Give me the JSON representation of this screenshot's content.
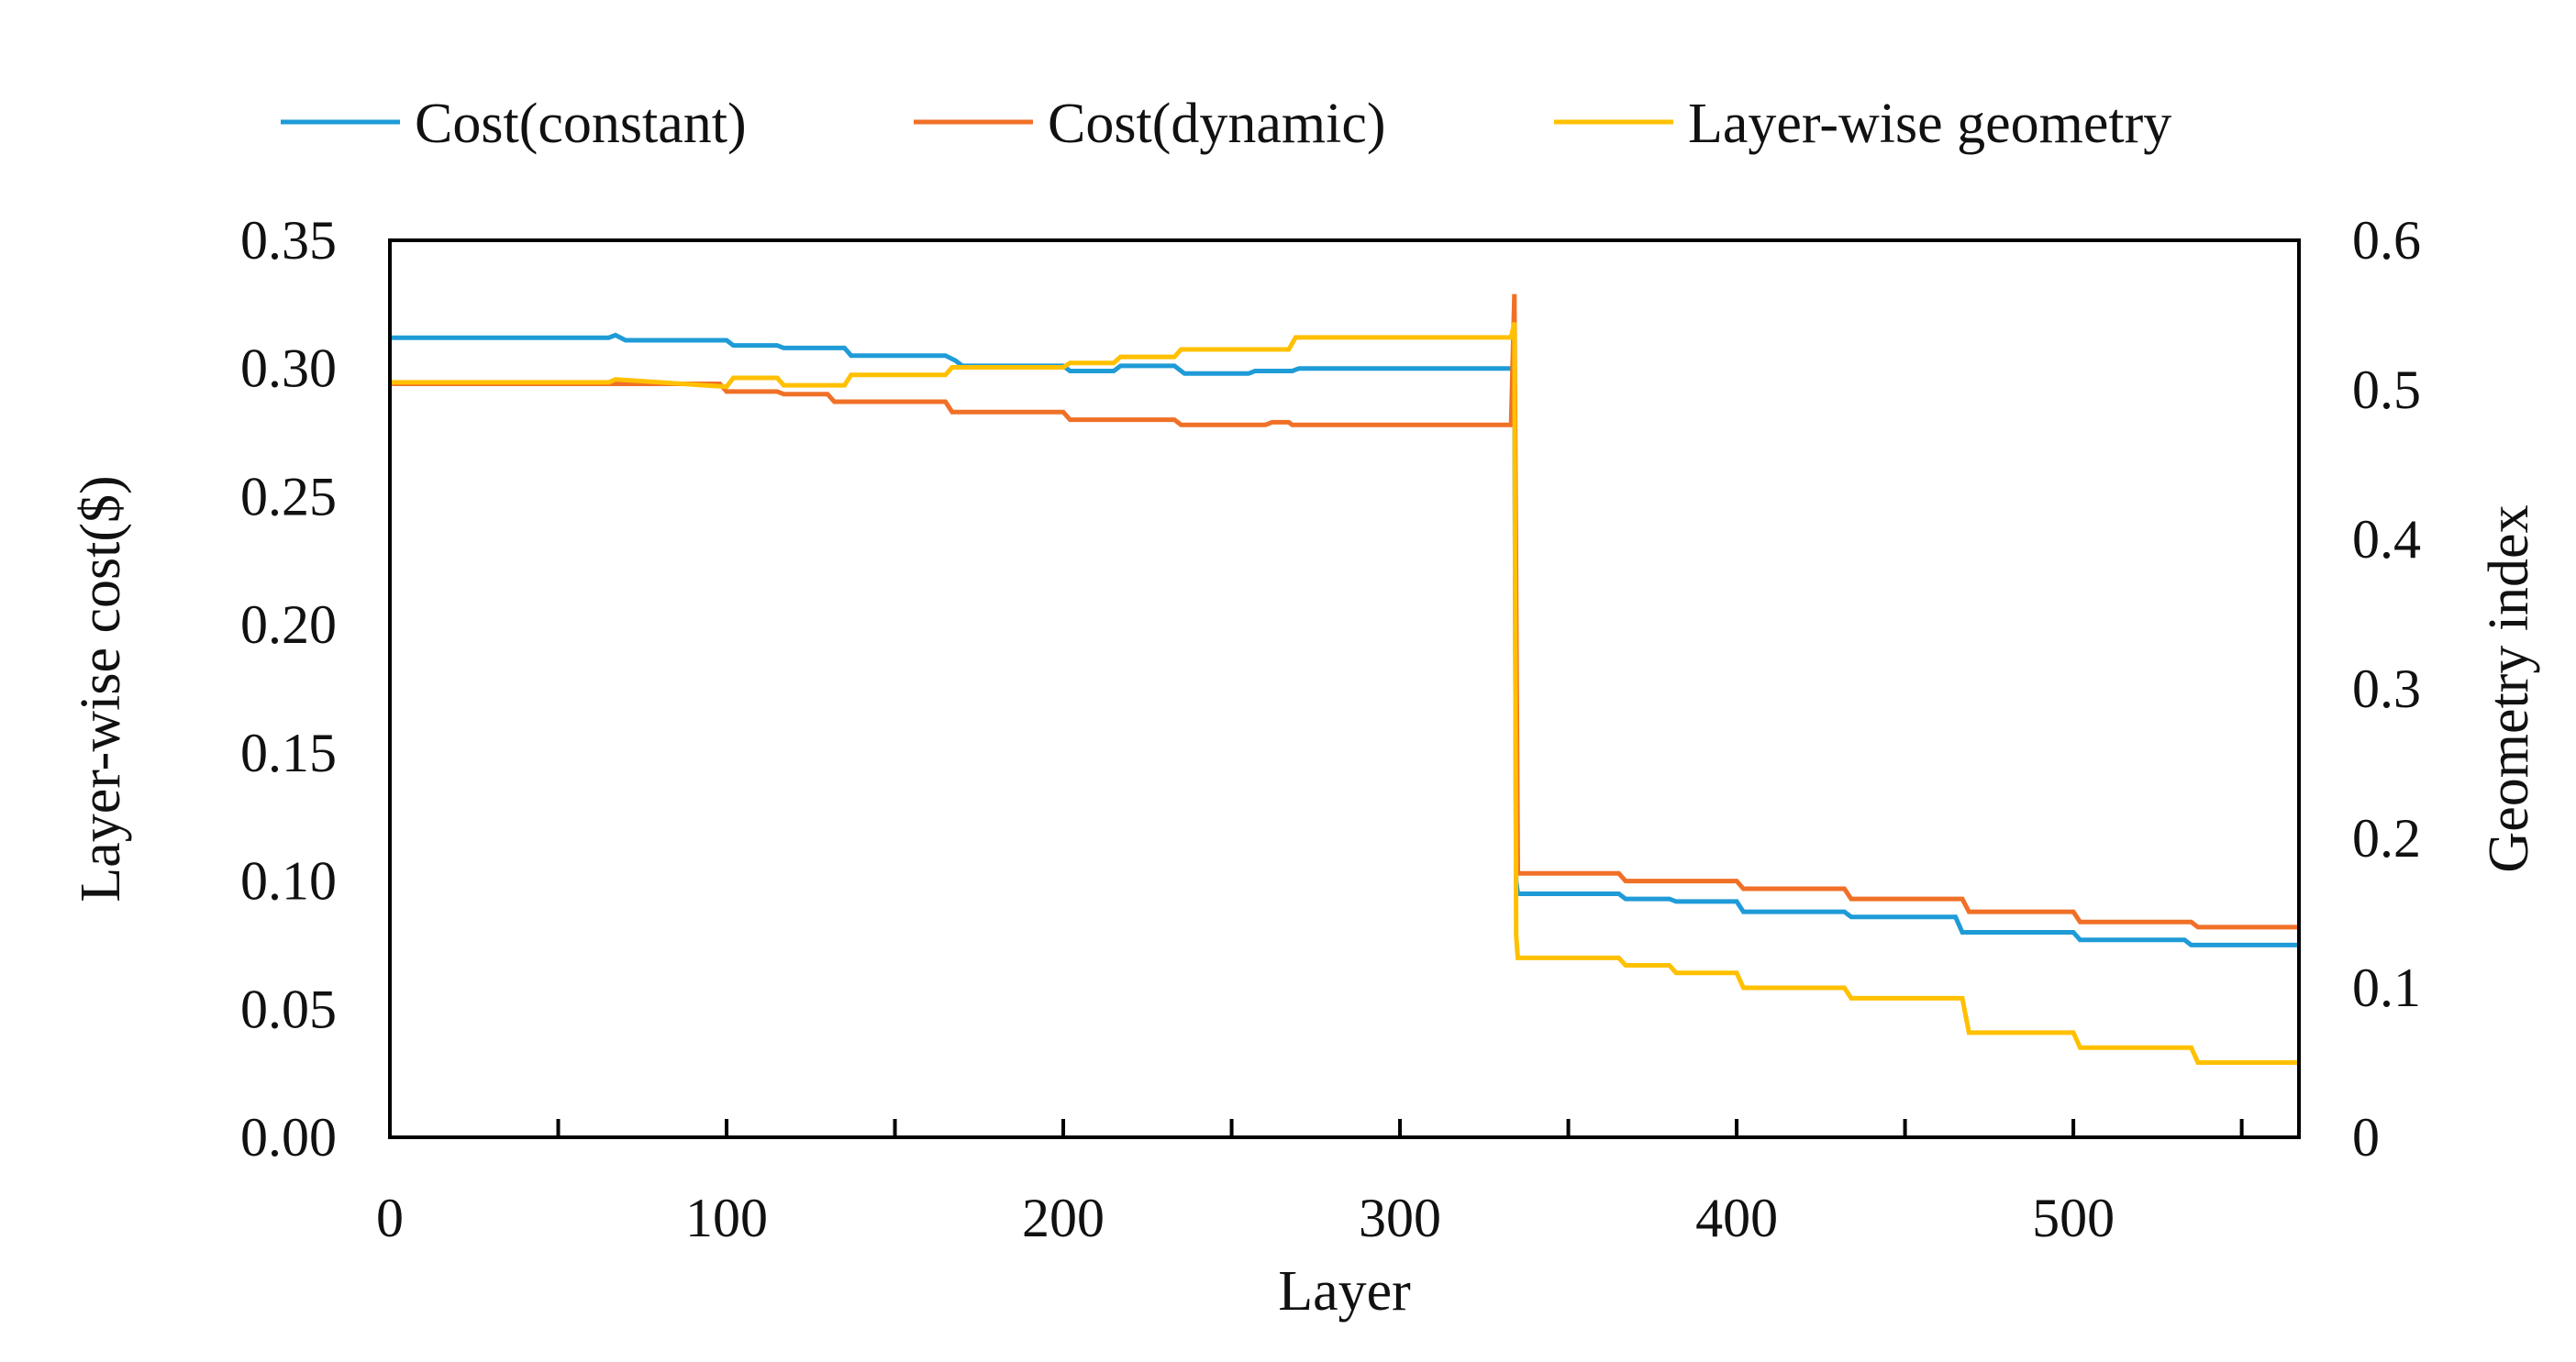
{
  "chart_data": {
    "type": "line",
    "title": "",
    "xlabel": "Layer",
    "ylabel": "Layer-wise cost($)",
    "y2label": "Geometry index",
    "xlim": [
      0,
      567
    ],
    "ylim": [
      0,
      0.35
    ],
    "y2lim": [
      0,
      0.6
    ],
    "xticks": [
      0,
      100,
      200,
      300,
      400,
      500
    ],
    "xtick_labels": [
      "0",
      "100",
      "200",
      "300",
      "400",
      "500"
    ],
    "yticks": [
      0,
      0.05,
      0.1,
      0.15,
      0.2,
      0.25,
      0.3,
      0.35
    ],
    "ytick_labels": [
      "0.00",
      "0.05",
      "0.10",
      "0.15",
      "0.20",
      "0.25",
      "0.30",
      "0.35"
    ],
    "y2ticks": [
      0,
      0.1,
      0.2,
      0.3,
      0.4,
      0.5,
      0.6
    ],
    "y2tick_labels": [
      "0",
      "0.1",
      "0.2",
      "0.3",
      "0.4",
      "0.5",
      "0.6"
    ],
    "grid": false,
    "legend_position": "top",
    "series": [
      {
        "name": "Cost(constant)",
        "color": "#1f9bd7",
        "axis": "left",
        "x": [
          0,
          65,
          67,
          70,
          100,
          102,
          115,
          117,
          135,
          137,
          165,
          168,
          170,
          200,
          202,
          215,
          217,
          233,
          236,
          255,
          257,
          268,
          270,
          333,
          334,
          334.5,
          335,
          336,
          365,
          367,
          380,
          382,
          400,
          402,
          432,
          434,
          465,
          467,
          500,
          502,
          533,
          535,
          567
        ],
        "y": [
          0.312,
          0.312,
          0.313,
          0.311,
          0.311,
          0.309,
          0.309,
          0.308,
          0.308,
          0.305,
          0.305,
          0.303,
          0.301,
          0.301,
          0.299,
          0.299,
          0.301,
          0.301,
          0.298,
          0.298,
          0.299,
          0.299,
          0.3,
          0.3,
          0.3,
          0.1,
          0.095,
          0.095,
          0.095,
          0.093,
          0.093,
          0.092,
          0.092,
          0.088,
          0.088,
          0.086,
          0.086,
          0.08,
          0.08,
          0.077,
          0.077,
          0.075,
          0.075
        ]
      },
      {
        "name": "Cost(dynamic)",
        "color": "#f07027",
        "axis": "left",
        "x": [
          0,
          98,
          100,
          115,
          117,
          130,
          132,
          165,
          167,
          200,
          202,
          233,
          235,
          260,
          262,
          267,
          268,
          333,
          334,
          335,
          336,
          365,
          367,
          400,
          402,
          432,
          434,
          467,
          469,
          500,
          502,
          535,
          537,
          567
        ],
        "y": [
          0.294,
          0.294,
          0.291,
          0.291,
          0.29,
          0.29,
          0.287,
          0.287,
          0.283,
          0.283,
          0.28,
          0.28,
          0.278,
          0.278,
          0.279,
          0.279,
          0.278,
          0.278,
          0.329,
          0.103,
          0.103,
          0.103,
          0.1,
          0.1,
          0.097,
          0.097,
          0.093,
          0.093,
          0.088,
          0.088,
          0.084,
          0.084,
          0.082,
          0.082
        ]
      },
      {
        "name": "Layer-wise geometry",
        "color": "#ffc000",
        "axis": "right",
        "x": [
          0,
          65,
          67,
          100,
          102,
          115,
          117,
          135,
          137,
          165,
          167,
          200,
          202,
          215,
          217,
          233,
          235,
          267,
          269,
          333,
          334,
          334.5,
          335,
          365,
          367,
          380,
          382,
          400,
          402,
          432,
          434,
          467,
          469,
          500,
          502,
          535,
          537,
          567
        ],
        "y": [
          0.505,
          0.505,
          0.507,
          0.502,
          0.508,
          0.508,
          0.503,
          0.503,
          0.51,
          0.51,
          0.515,
          0.515,
          0.518,
          0.518,
          0.522,
          0.522,
          0.527,
          0.527,
          0.535,
          0.535,
          0.545,
          0.135,
          0.12,
          0.12,
          0.115,
          0.115,
          0.11,
          0.11,
          0.1,
          0.1,
          0.093,
          0.093,
          0.07,
          0.07,
          0.06,
          0.06,
          0.05,
          0.05
        ]
      }
    ]
  }
}
